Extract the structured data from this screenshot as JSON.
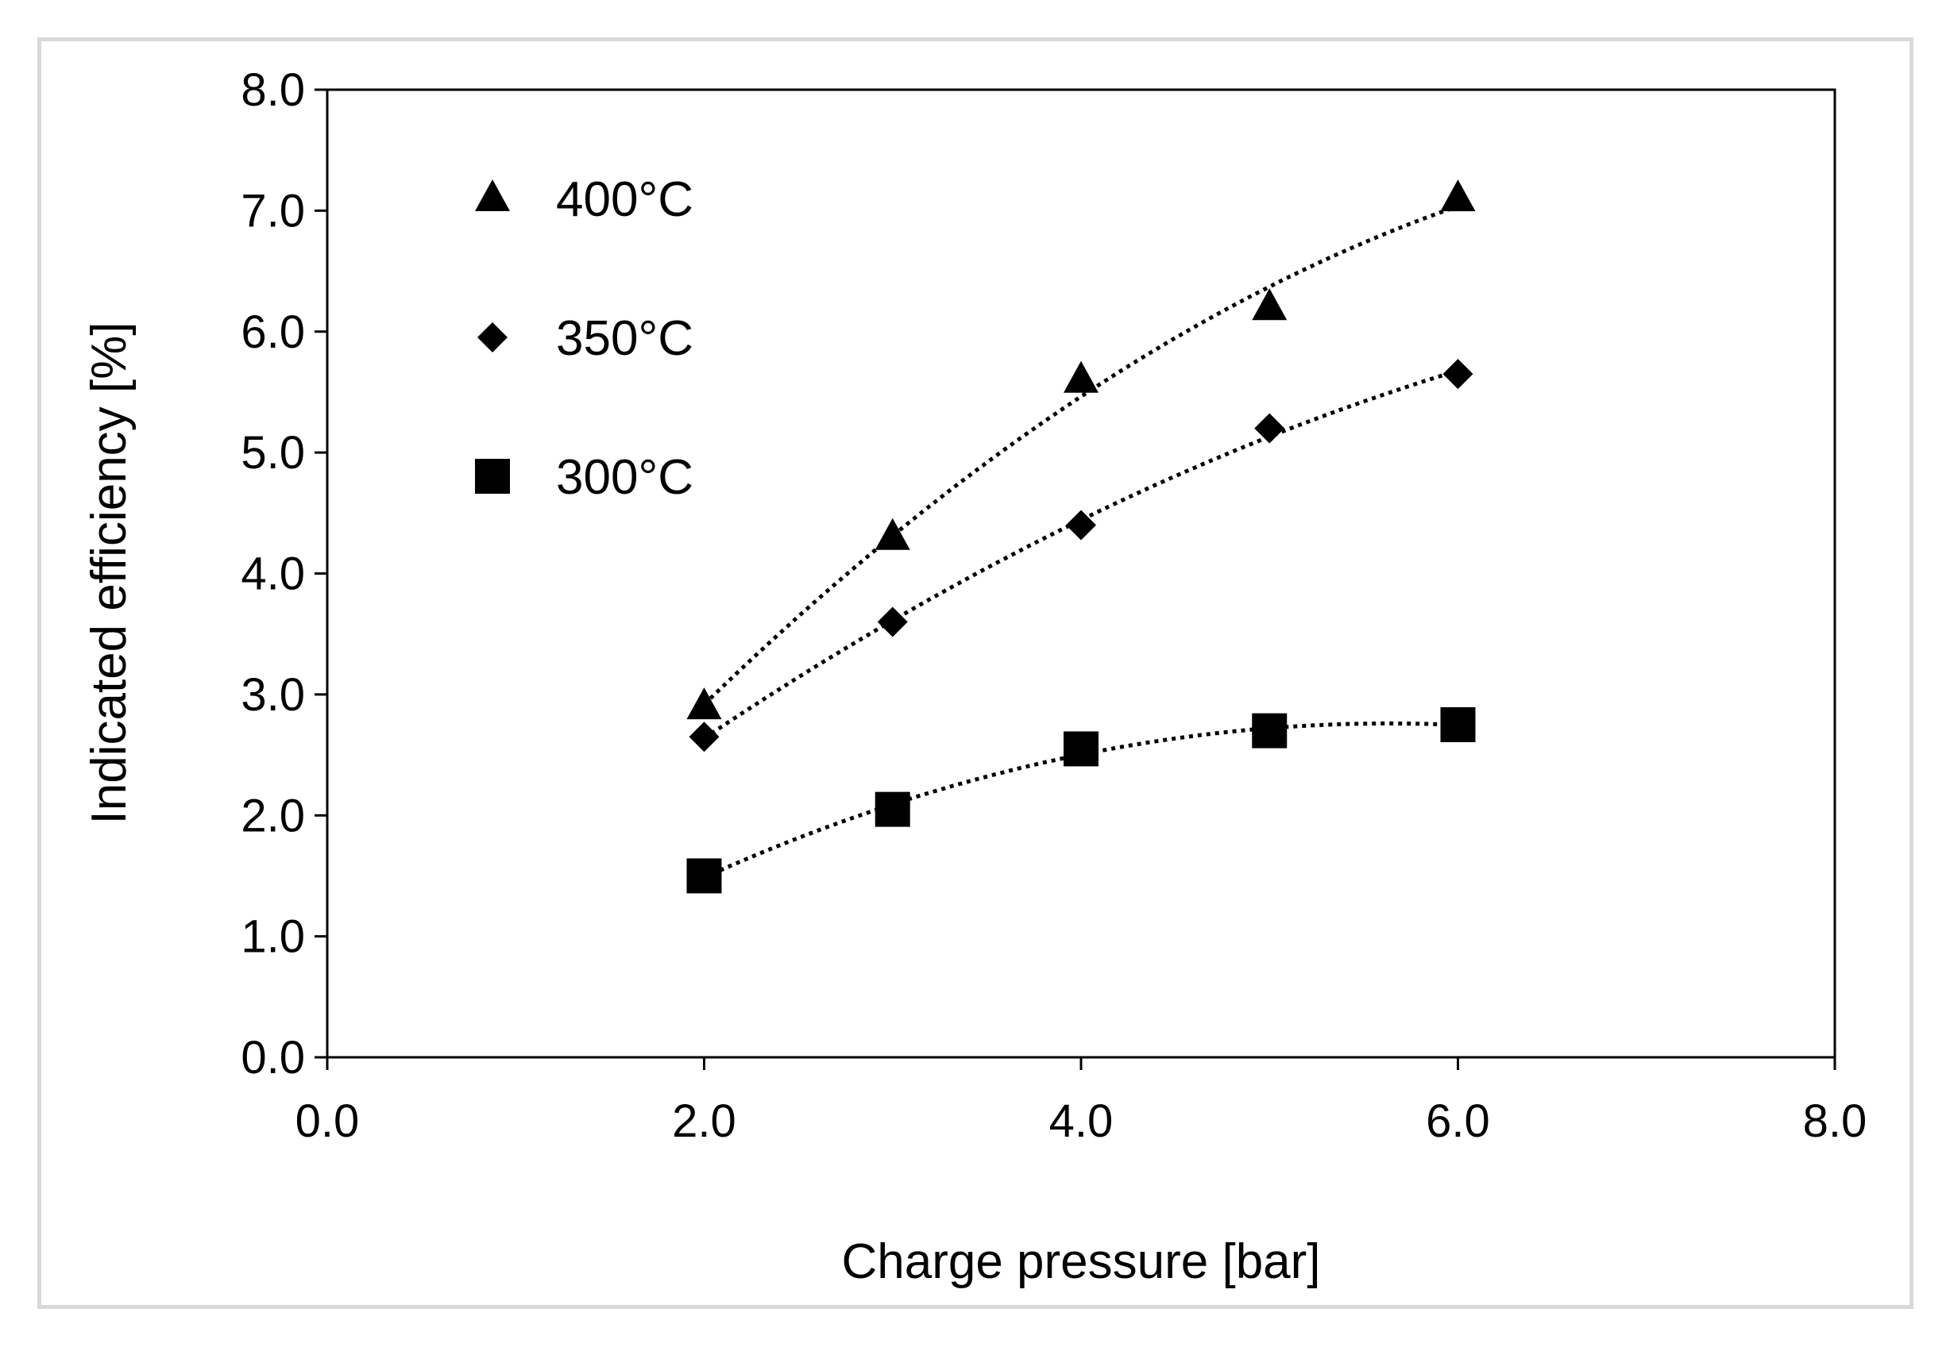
{
  "chart_data": {
    "type": "scatter",
    "title": "",
    "xlabel": "Charge pressure  [bar]",
    "ylabel": "Indicated efficiency [%]",
    "xlim": [
      0,
      8
    ],
    "ylim": [
      0,
      8
    ],
    "xticks": [
      "0.0",
      "2.0",
      "4.0",
      "6.0",
      "8.0"
    ],
    "yticks": [
      "0.0",
      "1.0",
      "2.0",
      "3.0",
      "4.0",
      "5.0",
      "6.0",
      "7.0",
      "8.0"
    ],
    "grid": false,
    "legend_position": "top-left",
    "trendline": "dotted polynomial",
    "series": [
      {
        "name": "400°C",
        "marker": "triangle",
        "x": [
          2,
          3,
          4,
          5,
          6
        ],
        "y": [
          2.9,
          4.3,
          5.6,
          6.2,
          7.1
        ]
      },
      {
        "name": "350°C",
        "marker": "diamond",
        "x": [
          2,
          3,
          4,
          5,
          6
        ],
        "y": [
          2.65,
          3.6,
          4.4,
          5.2,
          5.65
        ]
      },
      {
        "name": "300°C",
        "marker": "square",
        "x": [
          2,
          3,
          4,
          5,
          6
        ],
        "y": [
          1.5,
          2.05,
          2.55,
          2.7,
          2.75
        ]
      }
    ]
  }
}
